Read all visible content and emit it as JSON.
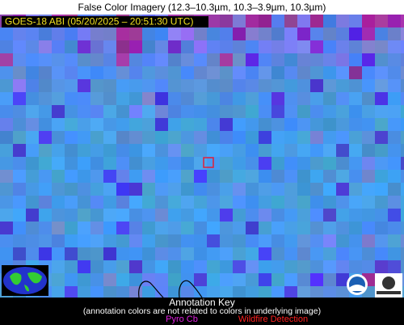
{
  "header": {
    "title": "False Color Imagery (12.3–10.3µm, 10.3–3.9µm, 10.3µm)"
  },
  "image": {
    "label": "GOES-18 ABI (05/20/2025 – 20:51:30 UTC)"
  },
  "annotation_key": {
    "title": "Annotation Key",
    "note": "(annotation colors are not related to colors in underlying image)",
    "items": [
      "Pyro Cb",
      "Wildfire Detection"
    ]
  }
}
